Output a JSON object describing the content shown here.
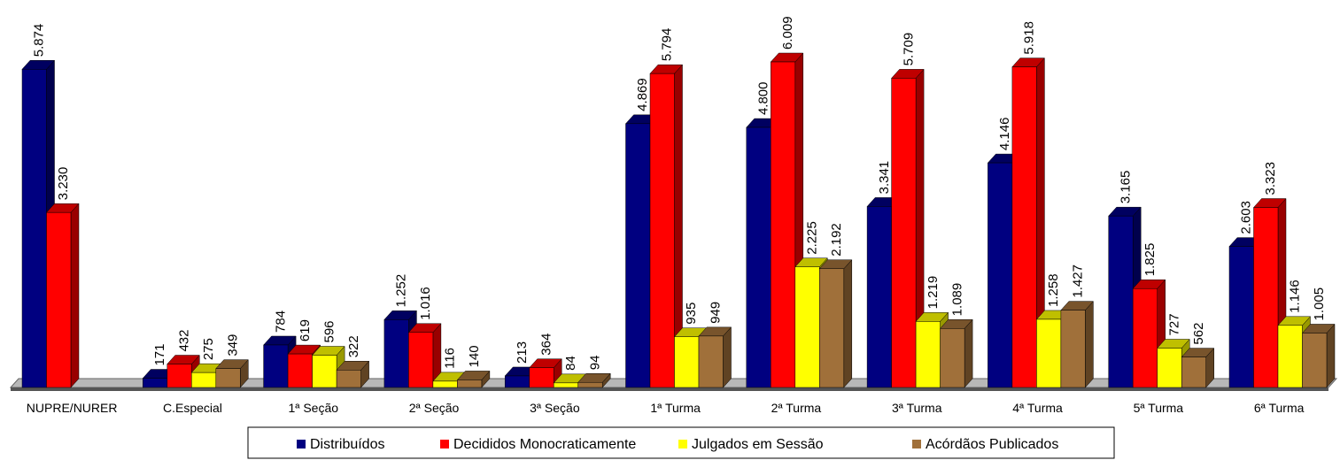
{
  "chart_data": {
    "type": "bar3d",
    "categories": [
      "NUPRE/NURER",
      "C.Especial",
      "1ª Seção",
      "2ª Seção",
      "3ª Seção",
      "1ª Turma",
      "2ª Turma",
      "3ª Turma",
      "4ª Turma",
      "5ª Turma",
      "6ª Turma"
    ],
    "series": [
      {
        "name": "Distribuídos",
        "color": "#000080",
        "values": [
          5874,
          171,
          784,
          1252,
          213,
          4869,
          4800,
          3341,
          4146,
          3165,
          2603
        ],
        "value_labels": [
          "5.874",
          "171",
          "784",
          "1.252",
          "213",
          "4.869",
          "4.800",
          "3.341",
          "4.146",
          "3.165",
          "2.603"
        ]
      },
      {
        "name": "Decididos Monocraticamente",
        "color": "#ff0000",
        "values": [
          3230,
          432,
          619,
          1016,
          364,
          5794,
          6009,
          5709,
          5918,
          1825,
          3323
        ],
        "value_labels": [
          "3.230",
          "432",
          "619",
          "1.016",
          "364",
          "5.794",
          "6.009",
          "5.709",
          "5.918",
          "1.825",
          "3.323"
        ]
      },
      {
        "name": "Julgados em Sessão",
        "color": "#ffff00",
        "values": [
          null,
          275,
          596,
          116,
          84,
          935,
          2225,
          1219,
          1258,
          727,
          1146
        ],
        "value_labels": [
          null,
          "275",
          "596",
          "116",
          "84",
          "935",
          "2.225",
          "1.219",
          "1.258",
          "727",
          "1.146"
        ]
      },
      {
        "name": "Acórdãos Publicados",
        "color": "#a0703a",
        "values": [
          null,
          349,
          322,
          140,
          94,
          949,
          2192,
          1089,
          1427,
          562,
          1005
        ],
        "value_labels": [
          null,
          "349",
          "322",
          "140",
          "94",
          "949",
          "2.192",
          "1.089",
          "1.427",
          "562",
          "1.005"
        ]
      }
    ],
    "legend": "bottom"
  }
}
